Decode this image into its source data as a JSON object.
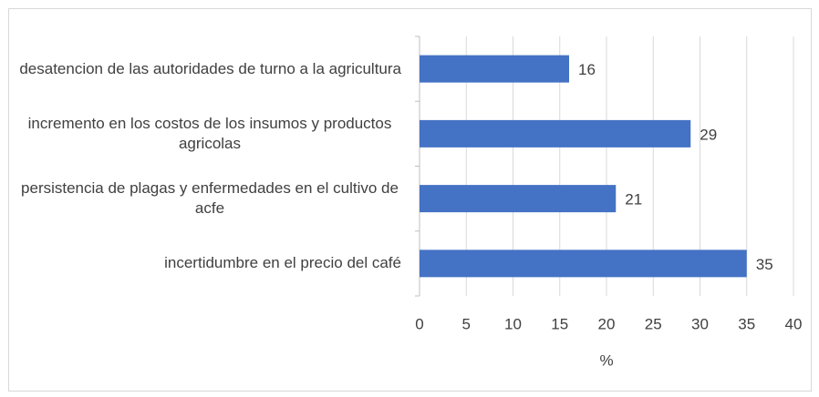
{
  "chart_data": {
    "type": "bar",
    "orientation": "horizontal",
    "categories": [
      "desatencion de las autoridades de turno a la agricultura",
      "incremento en los costos de los insumos y productos agricolas",
      "persistencia de plagas y enfermedades en el cultivo de acfe",
      "incertidumbre en el precio del café"
    ],
    "values": [
      16,
      29,
      21,
      35
    ],
    "color": "#4472c4",
    "xlim": [
      0,
      40
    ],
    "xticks": [
      0,
      5,
      10,
      15,
      20,
      25,
      30,
      35,
      40
    ],
    "xlabel": "%",
    "grid": true
  }
}
